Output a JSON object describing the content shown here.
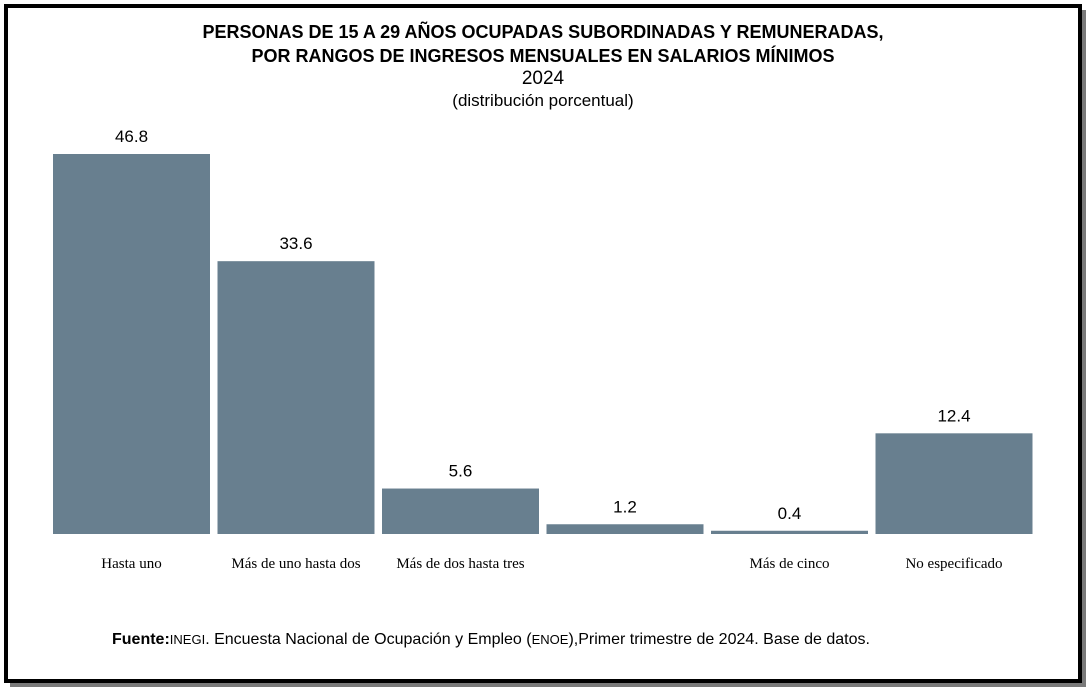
{
  "chart_data": {
    "type": "bar",
    "title": "PERSONAS DE 15 A 29 AÑOS OCUPADAS SUBORDINADAS Y REMUNERADAS,",
    "title_line2": "POR RANGOS DE INGRESOS MENSUALES EN SALARIOS MÍNIMOS",
    "year": "2024",
    "subtitle": "(distribución porcentual)",
    "categories": [
      "Hasta uno",
      "Más de uno hasta dos",
      "Más de dos hasta tres",
      "",
      "Más de cinco",
      "No especificado"
    ],
    "values": [
      46.8,
      33.6,
      5.6,
      1.2,
      0.4,
      12.4
    ],
    "value_labels": [
      "46.8",
      "33.6",
      "5.6",
      "1.2",
      "0.4",
      "12.4"
    ],
    "ylim": [
      0,
      50
    ],
    "grid": false,
    "legend": "none",
    "bar_color": "#687f8f"
  },
  "source": {
    "label": "Fuente:",
    "org": "INEGI",
    "text": ". Encuesta Nacional de Ocupación y Empleo (",
    "abbr": "ENOE",
    "text2": "),Primer trimestre de 2024. Base de datos."
  }
}
